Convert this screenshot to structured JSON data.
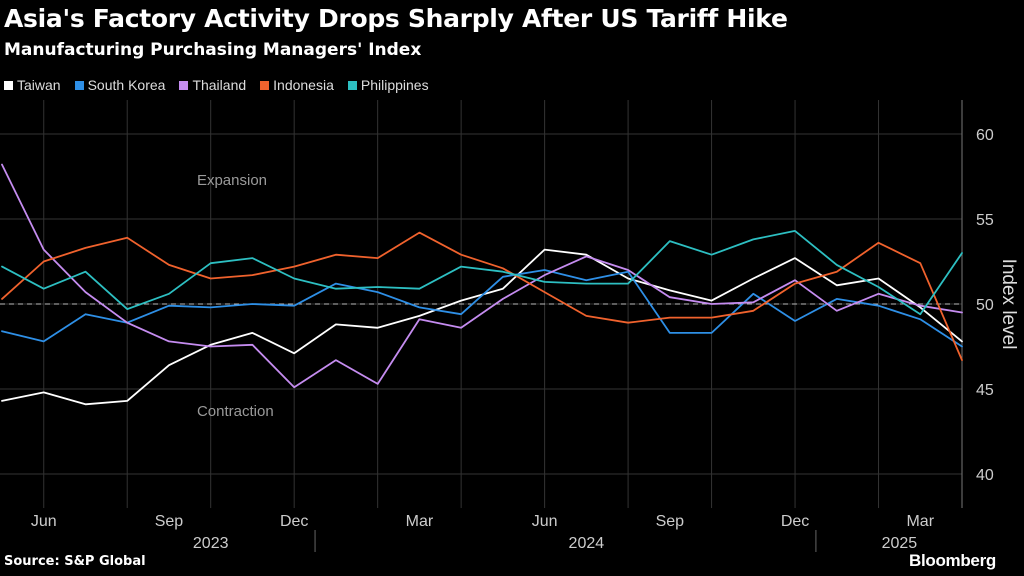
{
  "title": "Asia's Factory Activity Drops Sharply After US Tariff Hike",
  "subtitle": "Manufacturing Purchasing Managers' Index",
  "source": "Source: S&P Global",
  "brand": "Bloomberg",
  "chart_data": {
    "type": "line",
    "ylabel": "Index level",
    "ylim": [
      38,
      62
    ],
    "yticks": [
      40,
      45,
      50,
      55,
      60
    ],
    "reference_line": 50,
    "grid": true,
    "legend_position": "top-left",
    "x": [
      "2023-05",
      "2023-06",
      "2023-07",
      "2023-08",
      "2023-09",
      "2023-10",
      "2023-11",
      "2023-12",
      "2024-01",
      "2024-02",
      "2024-03",
      "2024-04",
      "2024-05",
      "2024-06",
      "2024-07",
      "2024-08",
      "2024-09",
      "2024-10",
      "2024-11",
      "2024-12",
      "2025-01",
      "2025-02",
      "2025-03",
      "2025-04"
    ],
    "xticks": [
      {
        "label": "Jun",
        "x": "2023-06"
      },
      {
        "label": "Sep",
        "x": "2023-09"
      },
      {
        "label": "Dec",
        "x": "2023-12"
      },
      {
        "label": "Mar",
        "x": "2024-03"
      },
      {
        "label": "Jun",
        "x": "2024-06"
      },
      {
        "label": "Sep",
        "x": "2024-09"
      },
      {
        "label": "Dec",
        "x": "2024-12"
      },
      {
        "label": "Mar",
        "x": "2025-03"
      }
    ],
    "year_labels": [
      {
        "label": "2023",
        "x": "2023-10"
      },
      {
        "label": "2024",
        "x": "2024-07"
      },
      {
        "label": "2025",
        "x": "2025-02.5"
      }
    ],
    "year_separators": [
      "2023-12.5",
      "2024-12.5"
    ],
    "annotations": [
      {
        "text": "Expansion",
        "x": "2023-09",
        "y": 57
      },
      {
        "text": "Contraction",
        "x": "2023-09",
        "y": 43.4
      }
    ],
    "series": [
      {
        "name": "Taiwan",
        "color": "#ffffff",
        "values": [
          44.3,
          44.8,
          44.1,
          44.3,
          46.4,
          47.6,
          48.3,
          47.1,
          48.8,
          48.6,
          49.3,
          50.2,
          50.9,
          53.2,
          52.9,
          51.5,
          50.8,
          50.2,
          51.5,
          52.7,
          51.1,
          51.5,
          49.8,
          47.8
        ]
      },
      {
        "name": "South Korea",
        "color": "#2e8fe6",
        "values": [
          48.4,
          47.8,
          49.4,
          48.9,
          49.9,
          49.8,
          50.0,
          49.9,
          51.2,
          50.7,
          49.8,
          49.4,
          51.6,
          52.0,
          51.4,
          51.9,
          48.3,
          48.3,
          50.6,
          49.0,
          50.3,
          49.9,
          49.1,
          47.5
        ]
      },
      {
        "name": "Thailand",
        "color": "#c58cf0",
        "values": [
          58.2,
          53.2,
          50.7,
          48.9,
          47.8,
          47.5,
          47.6,
          45.1,
          46.7,
          45.3,
          49.1,
          48.6,
          50.3,
          51.7,
          52.8,
          52.0,
          50.4,
          50.0,
          50.1,
          51.4,
          49.6,
          50.6,
          49.9,
          49.5
        ]
      },
      {
        "name": "Indonesia",
        "color": "#f0622d",
        "values": [
          50.3,
          52.5,
          53.3,
          53.9,
          52.3,
          51.5,
          51.7,
          52.2,
          52.9,
          52.7,
          54.2,
          52.9,
          52.1,
          50.7,
          49.3,
          48.9,
          49.2,
          49.2,
          49.6,
          51.2,
          51.9,
          53.6,
          52.4,
          46.7
        ]
      },
      {
        "name": "Philippines",
        "color": "#2dbfc2",
        "values": [
          52.2,
          50.9,
          51.9,
          49.7,
          50.6,
          52.4,
          52.7,
          51.5,
          50.9,
          51.0,
          50.9,
          52.2,
          51.9,
          51.3,
          51.2,
          51.2,
          53.7,
          52.9,
          53.8,
          54.3,
          52.3,
          51.0,
          49.4,
          53.0
        ]
      }
    ]
  }
}
